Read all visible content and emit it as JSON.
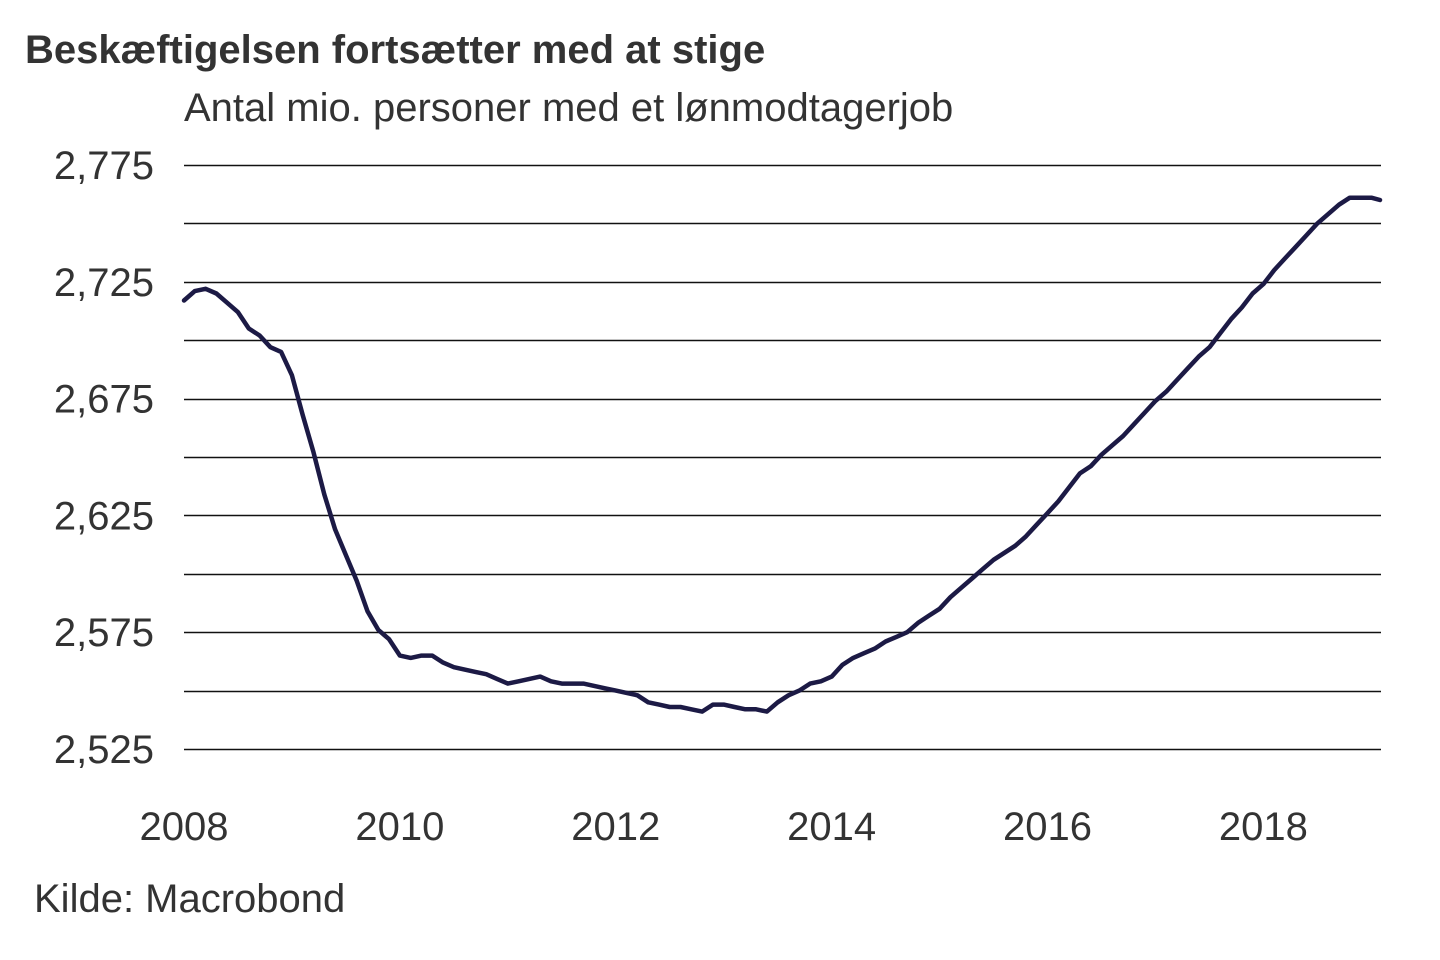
{
  "title": "Beskæftigelsen fortsætter med at stige",
  "subtitle": "Antal mio. personer med et lønmodtagerjob",
  "source": "Kilde: Macrobond",
  "chart_data": {
    "type": "line",
    "title": "Beskæftigelsen fortsætter med at stige",
    "subtitle": "Antal mio. personer med et lønmodtagerjob",
    "xlabel": "",
    "ylabel": "",
    "xlim": [
      2008,
      2019.08
    ],
    "ylim": [
      2.525,
      2.775
    ],
    "xticks": [
      2008,
      2010,
      2012,
      2014,
      2016,
      2018
    ],
    "xtick_labels": [
      "2008",
      "2010",
      "2012",
      "2014",
      "2016",
      "2018"
    ],
    "yticks": [
      2.775,
      2.725,
      2.675,
      2.625,
      2.575,
      2.525
    ],
    "ytick_labels": [
      "2,775",
      "2,725",
      "2,675",
      "2,625",
      "2,575",
      "2,525"
    ],
    "gridlines_y": [
      2.775,
      2.75,
      2.725,
      2.7,
      2.675,
      2.65,
      2.625,
      2.6,
      2.575,
      2.55,
      2.525
    ],
    "grid": true,
    "legend": "none",
    "line_color": "#1c1a45",
    "series": [
      {
        "x": [
          2008.0,
          2008.1,
          2008.2,
          2008.3,
          2008.4,
          2008.5,
          2008.6,
          2008.7,
          2008.8,
          2008.9,
          2009.0,
          2009.1,
          2009.2,
          2009.3,
          2009.4,
          2009.5,
          2009.6,
          2009.7,
          2009.8,
          2009.9,
          2010.0,
          2010.1,
          2010.2,
          2010.3,
          2010.4,
          2010.5,
          2010.6,
          2010.7,
          2010.8,
          2010.9,
          2011.0,
          2011.1,
          2011.2,
          2011.3,
          2011.4,
          2011.5,
          2011.6,
          2011.7,
          2011.8,
          2011.9,
          2012.0,
          2012.1,
          2012.2,
          2012.3,
          2012.4,
          2012.5,
          2012.6,
          2012.7,
          2012.8,
          2012.9,
          2013.0,
          2013.1,
          2013.2,
          2013.3,
          2013.4,
          2013.5,
          2013.6,
          2013.7,
          2013.8,
          2013.9,
          2014.0,
          2014.1,
          2014.2,
          2014.3,
          2014.4,
          2014.5,
          2014.6,
          2014.7,
          2014.8,
          2014.9,
          2015.0,
          2015.1,
          2015.2,
          2015.3,
          2015.4,
          2015.5,
          2015.6,
          2015.7,
          2015.8,
          2015.9,
          2016.0,
          2016.1,
          2016.2,
          2016.3,
          2016.4,
          2016.5,
          2016.6,
          2016.7,
          2016.8,
          2016.9,
          2017.0,
          2017.1,
          2017.2,
          2017.3,
          2017.4,
          2017.5,
          2017.6,
          2017.7,
          2017.8,
          2017.9,
          2018.0,
          2018.1,
          2018.2,
          2018.3,
          2018.4,
          2018.5,
          2018.6,
          2018.7,
          2018.8,
          2018.9,
          2019.0,
          2019.08
        ],
        "y": [
          2.717,
          2.721,
          2.722,
          2.72,
          2.716,
          2.712,
          2.705,
          2.702,
          2.697,
          2.695,
          2.685,
          2.668,
          2.652,
          2.634,
          2.619,
          2.608,
          2.597,
          2.584,
          2.576,
          2.572,
          2.565,
          2.564,
          2.565,
          2.565,
          2.562,
          2.56,
          2.559,
          2.558,
          2.557,
          2.555,
          2.553,
          2.554,
          2.555,
          2.556,
          2.554,
          2.553,
          2.553,
          2.553,
          2.552,
          2.551,
          2.55,
          2.549,
          2.548,
          2.545,
          2.544,
          2.543,
          2.543,
          2.542,
          2.541,
          2.544,
          2.544,
          2.543,
          2.542,
          2.542,
          2.541,
          2.545,
          2.548,
          2.55,
          2.553,
          2.554,
          2.556,
          2.561,
          2.564,
          2.566,
          2.568,
          2.571,
          2.573,
          2.575,
          2.579,
          2.582,
          2.585,
          2.59,
          2.594,
          2.598,
          2.602,
          2.606,
          2.609,
          2.612,
          2.616,
          2.621,
          2.626,
          2.631,
          2.637,
          2.643,
          2.646,
          2.651,
          2.655,
          2.659,
          2.664,
          2.669,
          2.674,
          2.678,
          2.683,
          2.688,
          2.693,
          2.697,
          2.703,
          2.709,
          2.714,
          2.72,
          2.724,
          2.73,
          2.735,
          2.74,
          2.745,
          2.75,
          2.754,
          2.758,
          2.761,
          2.761,
          2.761,
          2.76
        ]
      }
    ]
  }
}
